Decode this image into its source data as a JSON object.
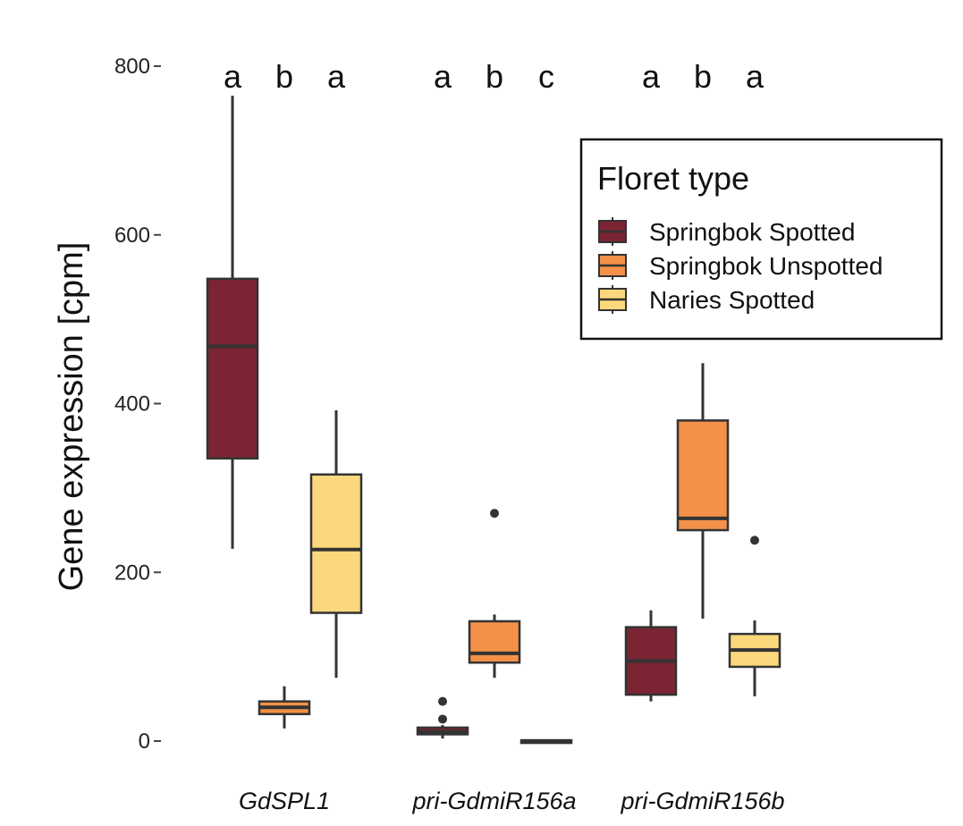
{
  "chart_data": {
    "type": "box",
    "ylabel": "Gene expression [cpm]",
    "xlabel": "",
    "ylim": [
      0,
      800
    ],
    "y_ticks": [
      0,
      200,
      400,
      600,
      800
    ],
    "y_tick_labels": [
      "0",
      "200",
      "400",
      "600",
      "800"
    ],
    "categories": [
      "GdSPL1",
      "pri-GdmiR156a",
      "pri-GdmiR156b"
    ],
    "significance_letters": [
      [
        "a",
        "b",
        "a"
      ],
      [
        "a",
        "b",
        "c"
      ],
      [
        "a",
        "b",
        "a"
      ]
    ],
    "grid": false,
    "legend": {
      "title": "Floret type",
      "placement": "top-right",
      "entries": [
        "Springbok Spotted",
        "Springbok Unspotted",
        "Naries Spotted"
      ]
    },
    "series": [
      {
        "name": "Springbok Spotted",
        "color": "#7B2433",
        "boxes": [
          {
            "whisker_low": 228,
            "q1": 335,
            "median": 468,
            "q3": 548,
            "whisker_high": 765,
            "outliers": []
          },
          {
            "whisker_low": 3,
            "q1": 8,
            "median": 11,
            "q3": 16,
            "whisker_high": 19,
            "outliers": [
              26,
              47
            ]
          },
          {
            "whisker_low": 47,
            "q1": 55,
            "median": 95,
            "q3": 135,
            "whisker_high": 155,
            "outliers": []
          }
        ]
      },
      {
        "name": "Springbok Unspotted",
        "color": "#F39149",
        "boxes": [
          {
            "whisker_low": 15,
            "q1": 32,
            "median": 40,
            "q3": 47,
            "whisker_high": 65,
            "outliers": []
          },
          {
            "whisker_low": 75,
            "q1": 93,
            "median": 104,
            "q3": 142,
            "whisker_high": 150,
            "outliers": [
              270
            ]
          },
          {
            "whisker_low": 145,
            "q1": 250,
            "median": 264,
            "q3": 380,
            "whisker_high": 448,
            "outliers": []
          }
        ]
      },
      {
        "name": "Naries Spotted",
        "color": "#FCD87C",
        "boxes": [
          {
            "whisker_low": 75,
            "q1": 152,
            "median": 227,
            "q3": 316,
            "whisker_high": 392,
            "outliers": []
          },
          {
            "whisker_low": 0,
            "q1": 0,
            "median": 0,
            "q3": 1,
            "whisker_high": 1,
            "outliers": []
          },
          {
            "whisker_low": 53,
            "q1": 88,
            "median": 108,
            "q3": 127,
            "whisker_high": 143,
            "outliers": [
              238
            ]
          }
        ]
      }
    ]
  }
}
